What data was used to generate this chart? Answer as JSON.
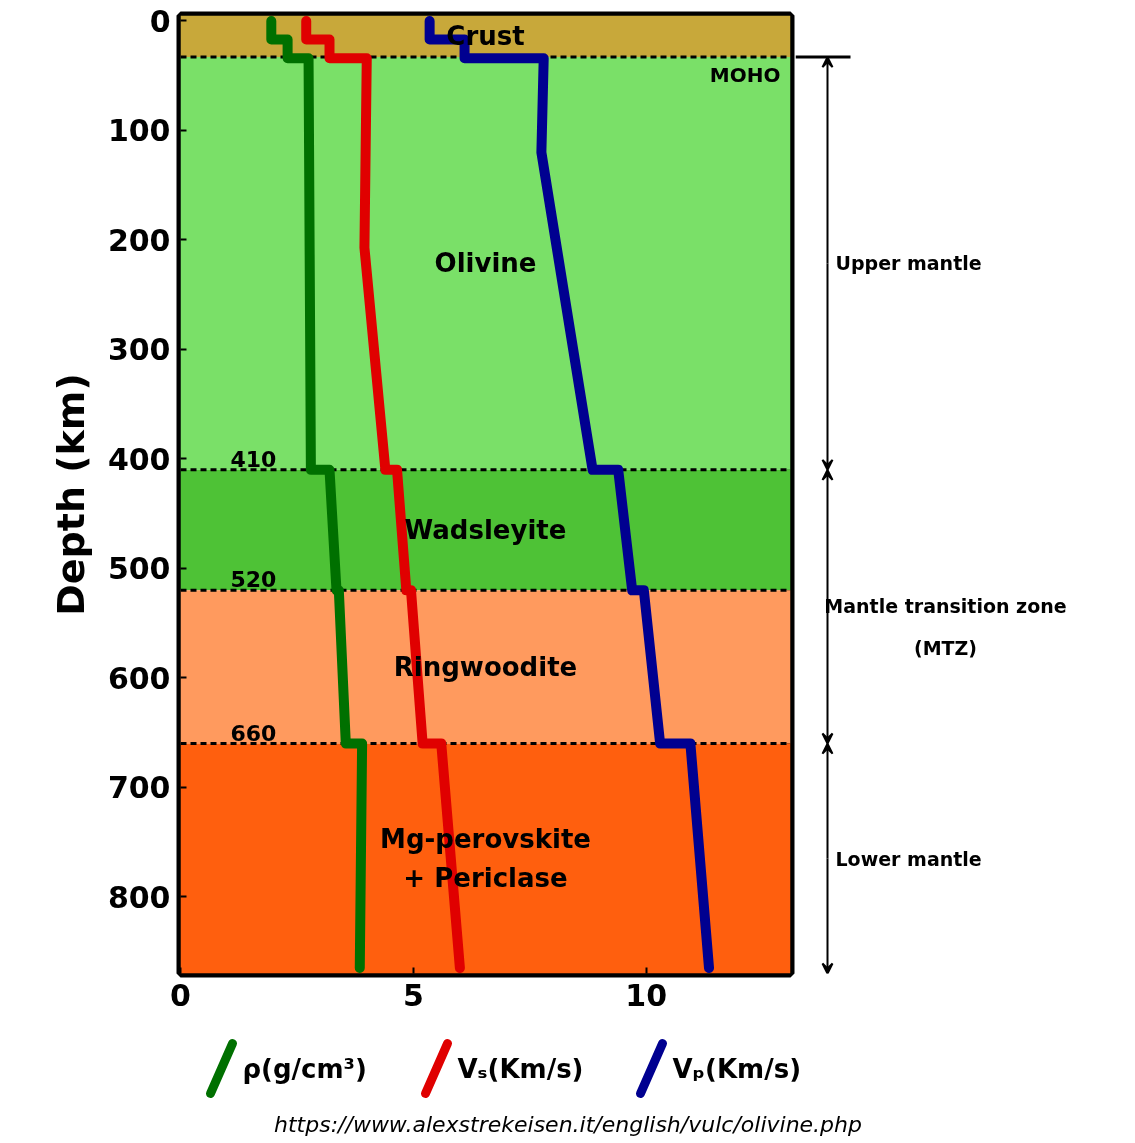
{
  "chart_data": {
    "type": "line",
    "ylabel": "Depth (km)",
    "xlim": [
      0,
      13.1
    ],
    "ylim": [
      870,
      -5
    ],
    "xticks": [
      0,
      5,
      10
    ],
    "yticks": [
      0,
      100,
      200,
      300,
      400,
      500,
      600,
      700,
      800
    ],
    "grid": false,
    "legend": "bottom",
    "line_style": "solid",
    "marker": "none",
    "series": [
      {
        "name": "ρ(g/cm³)",
        "color": "#007000",
        "x": [
          1.95,
          1.95,
          2.3,
          2.3,
          2.75,
          2.8,
          3.2,
          3.35,
          3.4,
          3.55,
          3.9,
          3.85
        ],
        "values": [
          0,
          17,
          17,
          34,
          34,
          410,
          410,
          520,
          520,
          660,
          660,
          865
        ]
      },
      {
        "name": "Vₛ(Km/s)",
        "color": "#e00000",
        "x": [
          2.7,
          2.7,
          3.2,
          3.2,
          4.0,
          3.95,
          4.4,
          4.65,
          4.85,
          4.95,
          5.2,
          5.6,
          6.0
        ],
        "values": [
          0,
          17,
          17,
          34,
          34,
          207,
          410,
          410,
          520,
          520,
          660,
          660,
          865
        ]
      },
      {
        "name": "Vₚ(Km/s)",
        "color": "#000090",
        "x": [
          5.35,
          5.35,
          6.1,
          6.1,
          7.8,
          7.75,
          8.85,
          9.4,
          9.7,
          9.95,
          10.3,
          10.95,
          11.35
        ],
        "values": [
          0,
          17,
          17,
          34,
          34,
          120,
          410,
          410,
          520,
          520,
          660,
          660,
          865
        ]
      }
    ],
    "bands": [
      {
        "axis": "y",
        "from": -5,
        "to": 33,
        "color": "#c8a83a",
        "label": "Crust"
      },
      {
        "axis": "y",
        "from": 33,
        "to": 410,
        "color": "#7ae068",
        "label": "Olivine"
      },
      {
        "axis": "y",
        "from": 410,
        "to": 520,
        "color": "#4ec236",
        "label": "Wadsleyite"
      },
      {
        "axis": "y",
        "from": 520,
        "to": 660,
        "color": "#ff9a5e",
        "label": "Ringwoodite"
      },
      {
        "axis": "y",
        "from": 660,
        "to": 870,
        "color": "#ff5f0e",
        "label": "Mg-perovskite\n+ Periclase"
      }
    ],
    "ref_lines": [
      {
        "axis": "y",
        "value": 33,
        "label": "MOHO",
        "line_style": "dashed"
      },
      {
        "axis": "y",
        "value": 410,
        "label": "410",
        "line_style": "dashed"
      },
      {
        "axis": "y",
        "value": 520,
        "label": "520",
        "line_style": "dashed"
      },
      {
        "axis": "y",
        "value": 660,
        "label": "660",
        "line_style": "dashed"
      }
    ],
    "annotations": [
      "Upper mantle",
      "Mantle transition zone\n(MTZ)",
      "Lower mantle",
      "https://www.alexstrekeisen.it/english/vulc/olivine.php"
    ]
  }
}
